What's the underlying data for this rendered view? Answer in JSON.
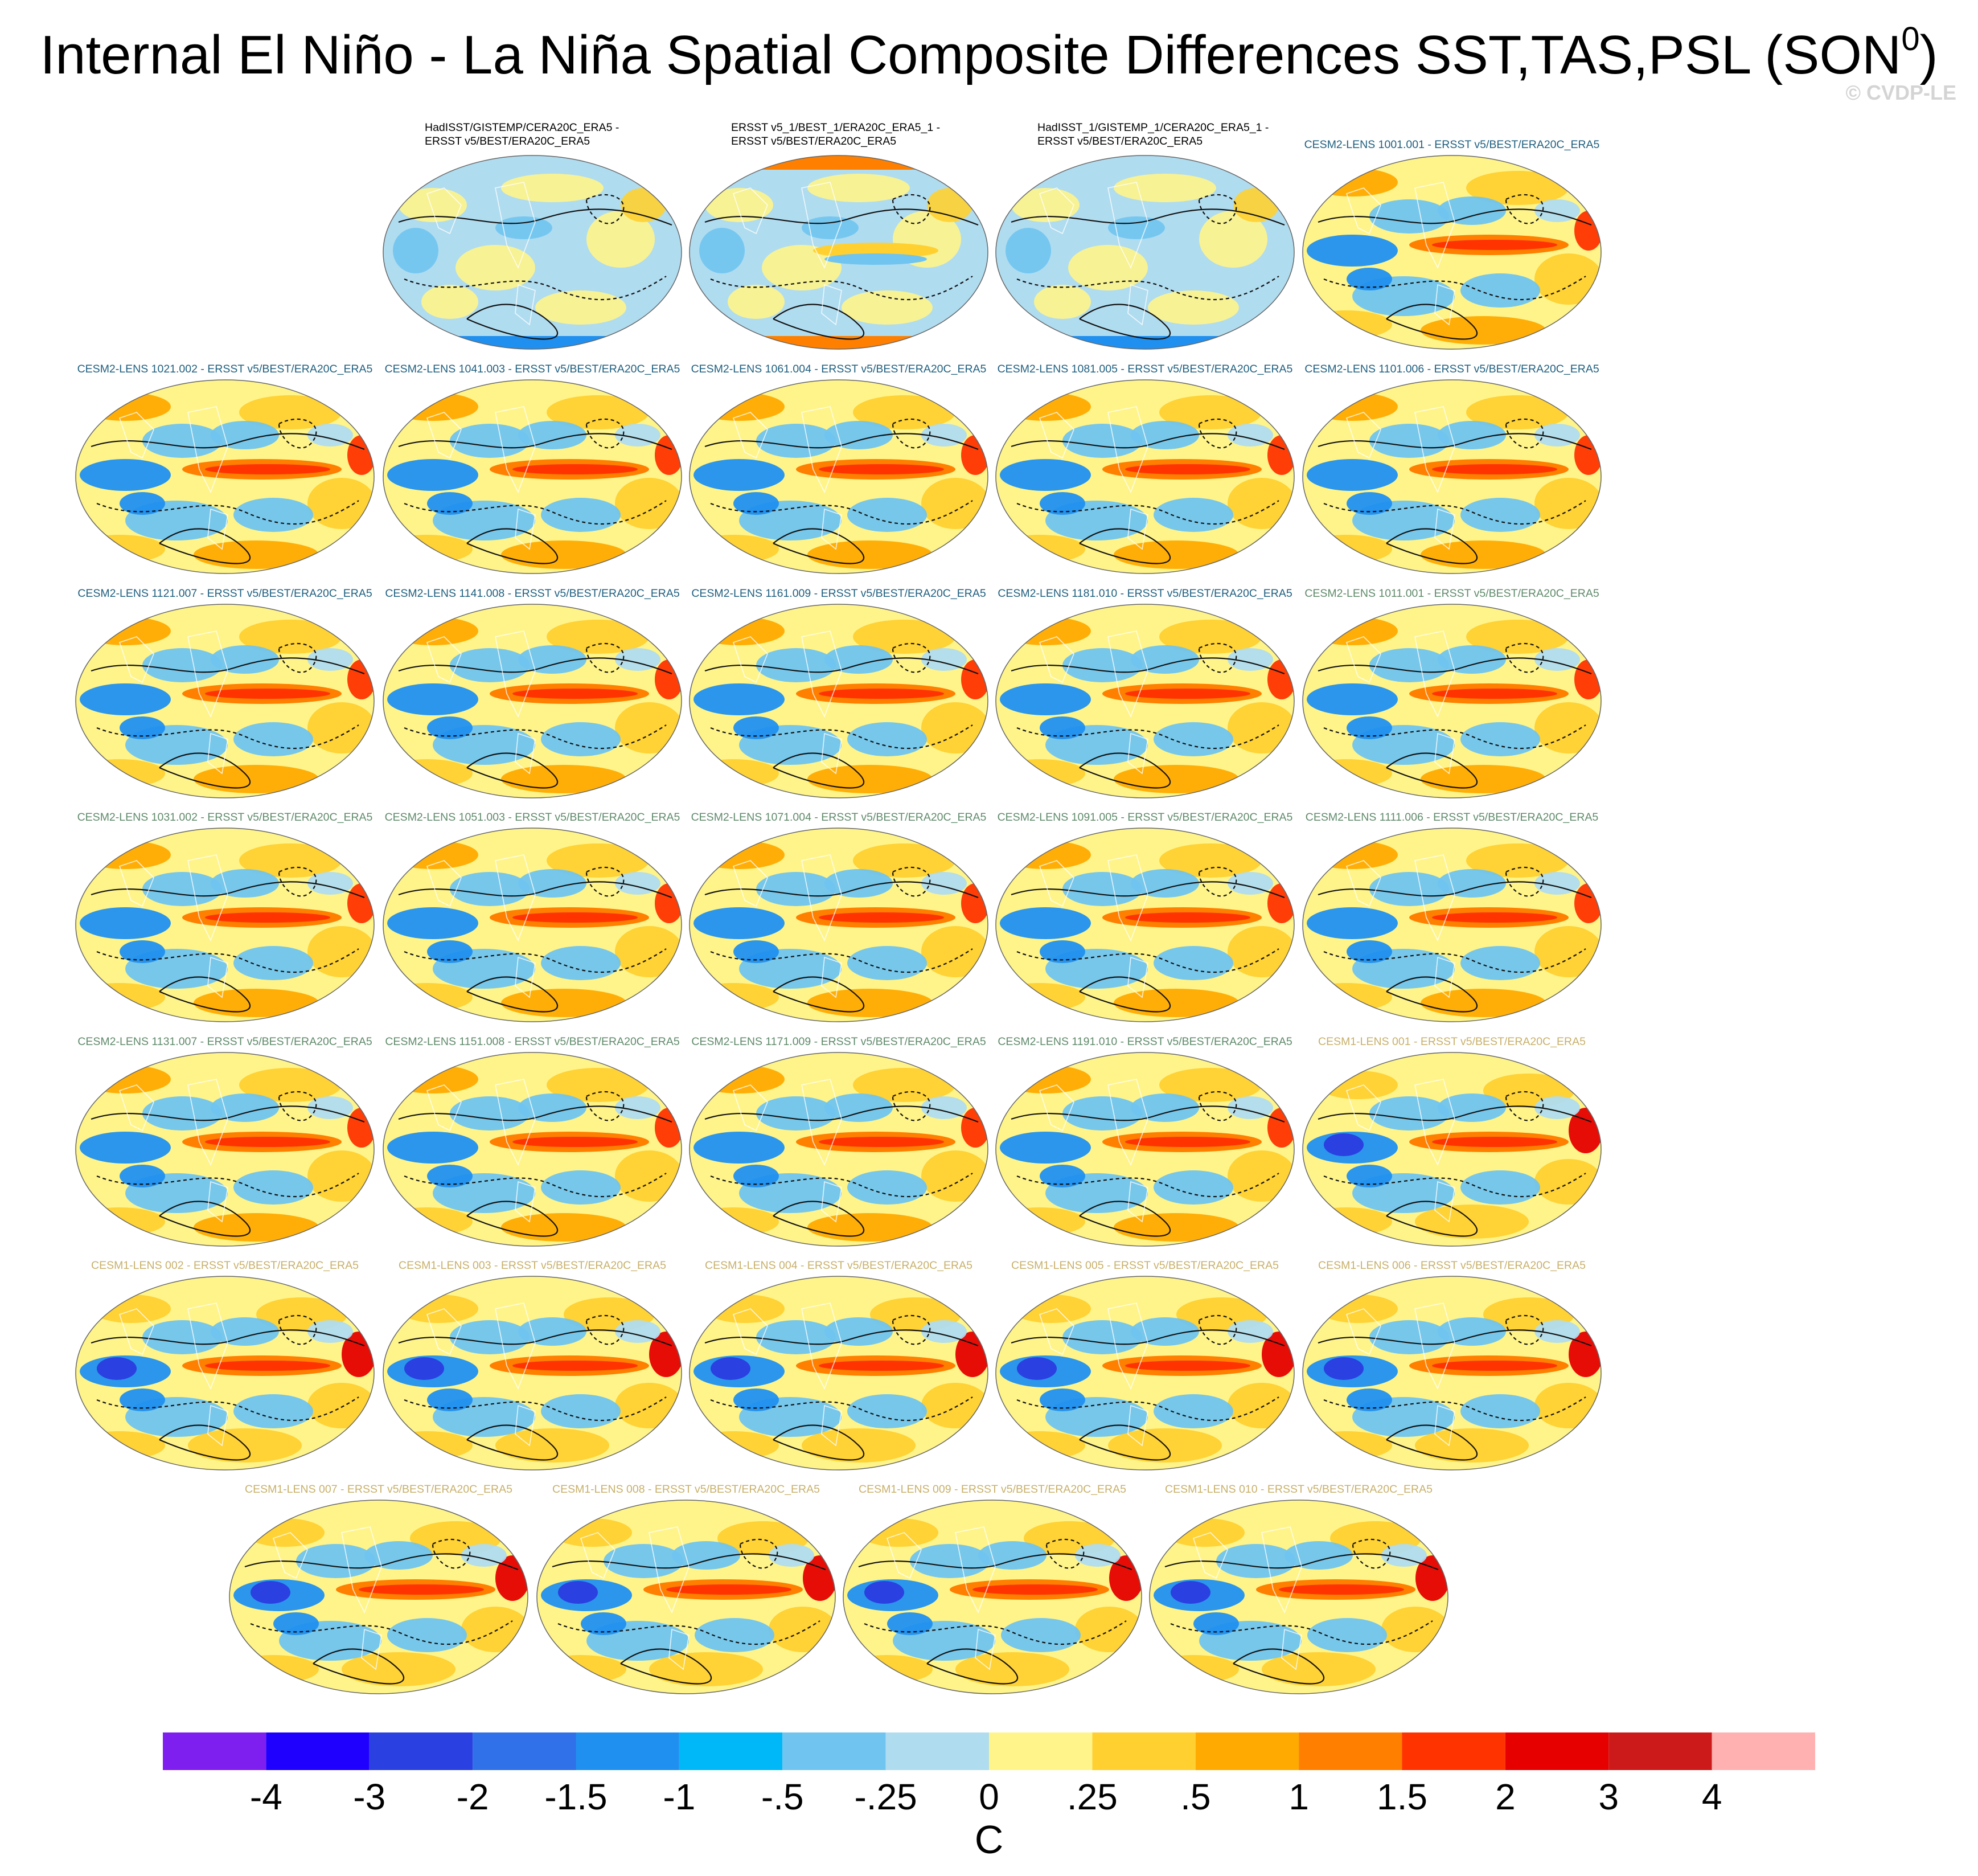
{
  "title": "Internal El Niño - La Niña Spatial Composite Differences SST,TAS,PSL (SON",
  "title_superscript": "0",
  "title_suffix": ")",
  "copyright": "© CVDP-LE",
  "colors": {
    "obs_label": "#000000",
    "cesm2_a": "#1f5f7f",
    "cesm2_b": "#5f8a6a",
    "cesm1": "#c8b06a"
  },
  "panels": [
    {
      "label_line1": "HadISST/GISTEMP/CERA20C_ERA5 -",
      "label_line2": "ERSST v5/BEST/ERA20C_ERA5",
      "group": "obs",
      "pattern": "obs"
    },
    {
      "label_line1": "ERSST v5_1/BEST_1/ERA20C_ERA5_1 -",
      "label_line2": "ERSST v5/BEST/ERA20C_ERA5",
      "group": "obs",
      "pattern": "obs2"
    },
    {
      "label_line1": "HadISST_1/GISTEMP_1/CERA20C_ERA5_1 -",
      "label_line2": "ERSST v5/BEST/ERA20C_ERA5",
      "group": "obs",
      "pattern": "obs"
    },
    {
      "label_line1": "CESM2-LENS 1001.001 - ERSST v5/BEST/ERA20C_ERA5",
      "label_line2": "",
      "group": "cesm2_a",
      "pattern": "model"
    },
    {
      "label_line1": "CESM2-LENS 1021.002 - ERSST v5/BEST/ERA20C_ERA5",
      "label_line2": "",
      "group": "cesm2_a",
      "pattern": "model"
    },
    {
      "label_line1": "CESM2-LENS 1041.003 - ERSST v5/BEST/ERA20C_ERA5",
      "label_line2": "",
      "group": "cesm2_a",
      "pattern": "model"
    },
    {
      "label_line1": "CESM2-LENS 1061.004 - ERSST v5/BEST/ERA20C_ERA5",
      "label_line2": "",
      "group": "cesm2_a",
      "pattern": "model"
    },
    {
      "label_line1": "CESM2-LENS 1081.005 - ERSST v5/BEST/ERA20C_ERA5",
      "label_line2": "",
      "group": "cesm2_a",
      "pattern": "model"
    },
    {
      "label_line1": "CESM2-LENS 1101.006 - ERSST v5/BEST/ERA20C_ERA5",
      "label_line2": "",
      "group": "cesm2_a",
      "pattern": "model"
    },
    {
      "label_line1": "CESM2-LENS 1121.007 - ERSST v5/BEST/ERA20C_ERA5",
      "label_line2": "",
      "group": "cesm2_a",
      "pattern": "model"
    },
    {
      "label_line1": "CESM2-LENS 1141.008 - ERSST v5/BEST/ERA20C_ERA5",
      "label_line2": "",
      "group": "cesm2_a",
      "pattern": "model"
    },
    {
      "label_line1": "CESM2-LENS 1161.009 - ERSST v5/BEST/ERA20C_ERA5",
      "label_line2": "",
      "group": "cesm2_a",
      "pattern": "model"
    },
    {
      "label_line1": "CESM2-LENS 1181.010 - ERSST v5/BEST/ERA20C_ERA5",
      "label_line2": "",
      "group": "cesm2_a",
      "pattern": "model"
    },
    {
      "label_line1": "CESM2-LENS 1011.001 - ERSST v5/BEST/ERA20C_ERA5",
      "label_line2": "",
      "group": "cesm2_b",
      "pattern": "model"
    },
    {
      "label_line1": "CESM2-LENS 1031.002 - ERSST v5/BEST/ERA20C_ERA5",
      "label_line2": "",
      "group": "cesm2_b",
      "pattern": "model"
    },
    {
      "label_line1": "CESM2-LENS 1051.003 - ERSST v5/BEST/ERA20C_ERA5",
      "label_line2": "",
      "group": "cesm2_b",
      "pattern": "model"
    },
    {
      "label_line1": "CESM2-LENS 1071.004 - ERSST v5/BEST/ERA20C_ERA5",
      "label_line2": "",
      "group": "cesm2_b",
      "pattern": "model"
    },
    {
      "label_line1": "CESM2-LENS 1091.005 - ERSST v5/BEST/ERA20C_ERA5",
      "label_line2": "",
      "group": "cesm2_b",
      "pattern": "model"
    },
    {
      "label_line1": "CESM2-LENS 1111.006 - ERSST v5/BEST/ERA20C_ERA5",
      "label_line2": "",
      "group": "cesm2_b",
      "pattern": "model"
    },
    {
      "label_line1": "CESM2-LENS 1131.007 - ERSST v5/BEST/ERA20C_ERA5",
      "label_line2": "",
      "group": "cesm2_b",
      "pattern": "model"
    },
    {
      "label_line1": "CESM2-LENS 1151.008 - ERSST v5/BEST/ERA20C_ERA5",
      "label_line2": "",
      "group": "cesm2_b",
      "pattern": "model"
    },
    {
      "label_line1": "CESM2-LENS 1171.009 - ERSST v5/BEST/ERA20C_ERA5",
      "label_line2": "",
      "group": "cesm2_b",
      "pattern": "model"
    },
    {
      "label_line1": "CESM2-LENS 1191.010 - ERSST v5/BEST/ERA20C_ERA5",
      "label_line2": "",
      "group": "cesm2_b",
      "pattern": "model"
    },
    {
      "label_line1": "CESM1-LENS 001 - ERSST v5/BEST/ERA20C_ERA5",
      "label_line2": "",
      "group": "cesm1",
      "pattern": "cesm1"
    },
    {
      "label_line1": "CESM1-LENS 002 - ERSST v5/BEST/ERA20C_ERA5",
      "label_line2": "",
      "group": "cesm1",
      "pattern": "cesm1"
    },
    {
      "label_line1": "CESM1-LENS 003 - ERSST v5/BEST/ERA20C_ERA5",
      "label_line2": "",
      "group": "cesm1",
      "pattern": "cesm1"
    },
    {
      "label_line1": "CESM1-LENS 004 - ERSST v5/BEST/ERA20C_ERA5",
      "label_line2": "",
      "group": "cesm1",
      "pattern": "cesm1"
    },
    {
      "label_line1": "CESM1-LENS 005 - ERSST v5/BEST/ERA20C_ERA5",
      "label_line2": "",
      "group": "cesm1",
      "pattern": "cesm1"
    },
    {
      "label_line1": "CESM1-LENS 006 - ERSST v5/BEST/ERA20C_ERA5",
      "label_line2": "",
      "group": "cesm1",
      "pattern": "cesm1"
    },
    {
      "label_line1": "CESM1-LENS 007 - ERSST v5/BEST/ERA20C_ERA5",
      "label_line2": "",
      "group": "cesm1",
      "pattern": "cesm1"
    },
    {
      "label_line1": "CESM1-LENS 008 - ERSST v5/BEST/ERA20C_ERA5",
      "label_line2": "",
      "group": "cesm1",
      "pattern": "cesm1"
    },
    {
      "label_line1": "CESM1-LENS 009 - ERSST v5/BEST/ERA20C_ERA5",
      "label_line2": "",
      "group": "cesm1",
      "pattern": "cesm1"
    },
    {
      "label_line1": "CESM1-LENS 010 - ERSST v5/BEST/ERA20C_ERA5",
      "label_line2": "",
      "group": "cesm1",
      "pattern": "cesm1"
    }
  ],
  "colorbar": {
    "unit": "C",
    "labels": [
      "-4",
      "-3",
      "-2",
      "-1.5",
      "-1",
      "-.5",
      "-.25",
      "0",
      ".25",
      ".5",
      "1",
      "1.5",
      "2",
      "3",
      "4"
    ],
    "colors": [
      "#7f1fef",
      "#1f00ff",
      "#2a40e0",
      "#3070e8",
      "#2090f0",
      "#00b8f8",
      "#70c4f0",
      "#b0dcf0",
      "#fff48a",
      "#ffd030",
      "#ffaa00",
      "#ff7f00",
      "#ff3300",
      "#e60000",
      "#cc1a1a",
      "#ffb0b0"
    ]
  }
}
